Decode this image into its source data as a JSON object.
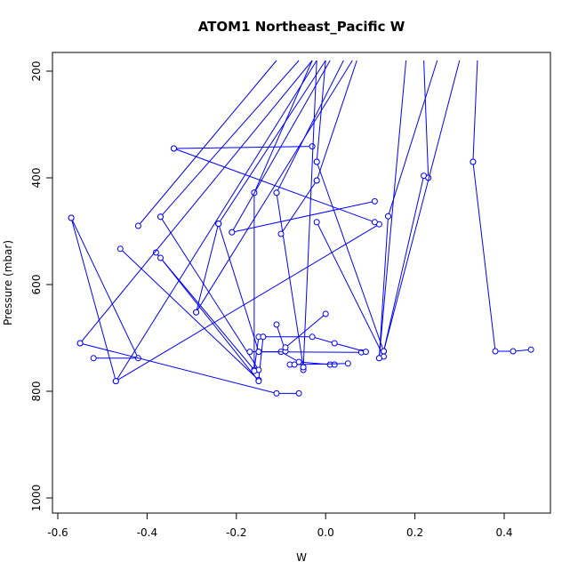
{
  "chart_data": {
    "type": "scatter",
    "title": "ATOM1 Northeast_Pacific W",
    "xlabel": "W",
    "ylabel": "Pressure (mbar)",
    "xlim": [
      -0.61,
      0.5
    ],
    "ylim": [
      1020,
      180
    ],
    "y_reversed": true,
    "x_ticks": [
      -0.6,
      -0.4,
      -0.2,
      0.0,
      0.2,
      0.4
    ],
    "x_tick_labels": [
      "-0.6",
      "-0.4",
      "-0.2",
      "0.0",
      "0.2",
      "0.4"
    ],
    "y_ticks": [
      200,
      400,
      600,
      800,
      1000
    ],
    "y_tick_labels": [
      "200",
      "400",
      "600",
      "800",
      "1000"
    ],
    "grid": false,
    "series_color": "#0000ff",
    "series": [
      {
        "points": [
          [
            -0.57,
            475
          ],
          [
            -0.42,
            738
          ],
          [
            -0.52,
            738
          ]
        ]
      },
      {
        "points": [
          [
            -0.57,
            475
          ],
          [
            -0.47,
            781
          ],
          [
            0.12,
            487
          ]
        ]
      },
      {
        "points": [
          [
            -0.55,
            710
          ],
          [
            -0.11,
            804
          ],
          [
            -0.06,
            804
          ]
        ]
      },
      {
        "points": [
          [
            -0.34,
            345
          ],
          [
            -0.03,
            341
          ]
        ]
      },
      {
        "points": [
          [
            -0.34,
            345
          ],
          [
            0.11,
            483
          ]
        ]
      },
      {
        "points": [
          [
            -0.46,
            533
          ],
          [
            -0.15,
            779
          ],
          [
            -0.14,
            698
          ]
        ]
      },
      {
        "points": [
          [
            -0.38,
            540
          ],
          [
            -0.16,
            760
          ],
          [
            -0.15,
            698
          ]
        ]
      },
      {
        "points": [
          [
            -0.37,
            550
          ],
          [
            -0.15,
            781
          ]
        ]
      },
      {
        "points": [
          [
            -0.37,
            473
          ],
          [
            -0.15,
            760
          ]
        ]
      },
      {
        "points": [
          [
            -0.29,
            652
          ],
          [
            -0.24,
            486
          ]
        ]
      },
      {
        "points": [
          [
            -0.24,
            486
          ],
          [
            -0.15,
            726
          ]
        ]
      },
      {
        "points": [
          [
            -0.21,
            502
          ],
          [
            0.11,
            444
          ]
        ]
      },
      {
        "points": [
          [
            -0.16,
            428
          ],
          [
            -0.16,
            762
          ]
        ]
      },
      {
        "points": [
          [
            -0.17,
            726
          ],
          [
            -0.1,
            726
          ],
          [
            -0.06,
            745
          ],
          [
            0.01,
            750
          ],
          [
            0.02,
            750
          ]
        ]
      },
      {
        "points": [
          [
            -0.15,
            726
          ],
          [
            0.08,
            727
          ]
        ]
      },
      {
        "points": [
          [
            -0.14,
            698
          ],
          [
            -0.03,
            698
          ],
          [
            0.02,
            710
          ],
          [
            0.09,
            726
          ]
        ]
      },
      {
        "points": [
          [
            -0.11,
            675
          ],
          [
            -0.09,
            725
          ]
        ]
      },
      {
        "points": [
          [
            -0.09,
            718
          ],
          [
            0.0,
            655
          ]
        ]
      },
      {
        "points": [
          [
            -0.08,
            750
          ],
          [
            -0.07,
            750
          ],
          [
            0.05,
            748
          ]
        ]
      },
      {
        "points": [
          [
            -0.11,
            428
          ],
          [
            -0.05,
            755
          ],
          [
            -0.05,
            760
          ]
        ]
      },
      {
        "points": [
          [
            -0.1,
            505
          ],
          [
            -0.02,
            405
          ]
        ]
      },
      {
        "points": [
          [
            -0.02,
            370
          ],
          [
            0.13,
            725
          ]
        ]
      },
      {
        "points": [
          [
            -0.02,
            483
          ],
          [
            0.13,
            735
          ]
        ]
      },
      {
        "points": [
          [
            0.12,
            738
          ],
          [
            0.14,
            472
          ]
        ]
      },
      {
        "points": [
          [
            0.13,
            725
          ],
          [
            0.22,
            396
          ]
        ]
      },
      {
        "points": [
          [
            0.23,
            400
          ],
          [
            0.22,
            180
          ]
        ]
      },
      {
        "points": [
          [
            0.33,
            370
          ],
          [
            0.38,
            725
          ],
          [
            0.42,
            725
          ],
          [
            0.46,
            722
          ]
        ]
      },
      {
        "points": [
          [
            0.33,
            370
          ],
          [
            0.34,
            180
          ]
        ]
      },
      {
        "points": [
          [
            -0.47,
            781
          ],
          [
            -0.02,
            180
          ]
        ]
      },
      {
        "points": [
          [
            -0.42,
            490
          ],
          [
            -0.11,
            180
          ]
        ]
      },
      {
        "points": [
          [
            -0.55,
            710
          ],
          [
            -0.03,
            180
          ]
        ]
      },
      {
        "points": [
          [
            -0.37,
            473
          ],
          [
            -0.06,
            180
          ]
        ]
      },
      {
        "points": [
          [
            -0.29,
            652
          ],
          [
            0.06,
            180
          ]
        ]
      },
      {
        "points": [
          [
            -0.16,
            428
          ],
          [
            -0.03,
            180
          ]
        ]
      },
      {
        "points": [
          [
            -0.11,
            428
          ],
          [
            0.04,
            180
          ]
        ]
      },
      {
        "points": [
          [
            -0.02,
            405
          ],
          [
            0.07,
            180
          ]
        ]
      },
      {
        "points": [
          [
            -0.02,
            370
          ],
          [
            0.0,
            180
          ]
        ]
      },
      {
        "points": [
          [
            -0.05,
            755
          ],
          [
            -0.02,
            180
          ]
        ]
      },
      {
        "points": [
          [
            0.13,
            725
          ],
          [
            0.3,
            180
          ]
        ]
      },
      {
        "points": [
          [
            0.14,
            472
          ],
          [
            0.25,
            180
          ]
        ]
      },
      {
        "points": [
          [
            0.12,
            738
          ],
          [
            0.18,
            180
          ]
        ]
      },
      {
        "points": [
          [
            -0.24,
            486
          ],
          [
            0.0,
            180
          ]
        ]
      },
      {
        "points": [
          [
            -0.21,
            502
          ],
          [
            0.01,
            180
          ]
        ]
      }
    ]
  }
}
